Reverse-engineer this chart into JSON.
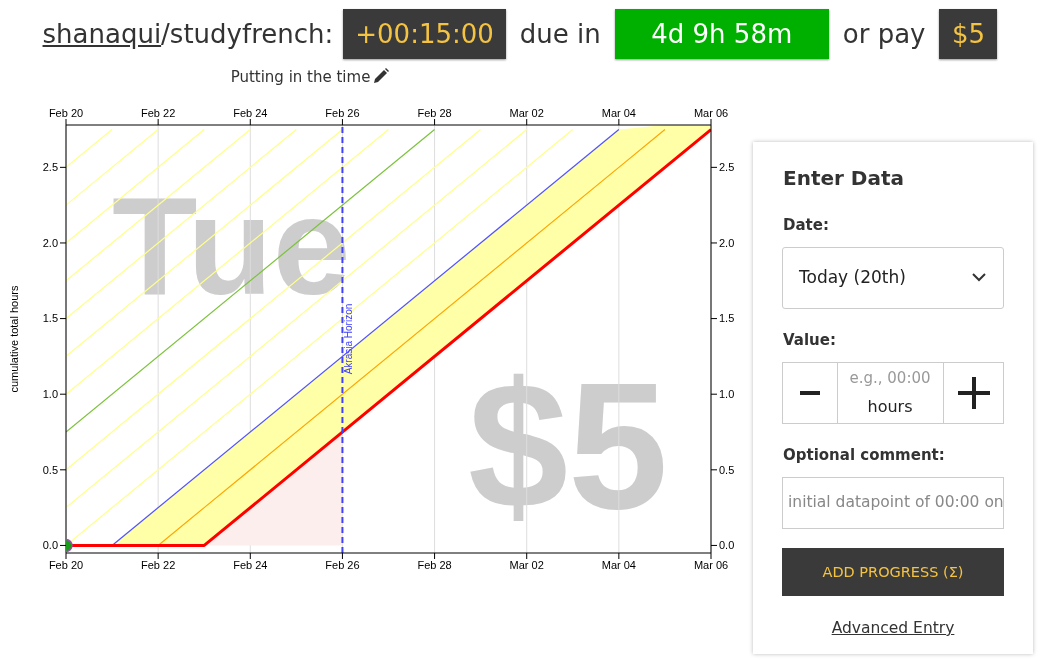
{
  "chart_data": [
    {
      "type": "other",
      "annotations": [
        "shanaqui/studyfrench:",
        "+00:15:00",
        "due in",
        "4d 9h 58m",
        "or pay",
        "$5"
      ]
    },
    {
      "type": "line",
      "title": "Putting in the time",
      "ylabel": "cumulative total hours",
      "annotations": [
        "Tue",
        "$5"
      ],
      "xlim": [
        "--02-20",
        "--03-06"
      ],
      "ylim": [
        -0.05,
        2.78
      ],
      "x2lim": [
        "--02-20",
        "--03-06"
      ],
      "y2lim": [
        -0.05,
        2.78
      ],
      "xticks": [
        {
          "value": "--02-20",
          "label": "Feb 20"
        },
        {
          "value": "--02-22",
          "label": "Feb 22"
        },
        {
          "value": "--02-24",
          "label": "Feb 24"
        },
        {
          "value": "--02-26",
          "label": "Feb 26"
        },
        {
          "value": "--02-28",
          "label": "Feb 28"
        },
        {
          "value": "--03-02",
          "label": "Mar 02"
        },
        {
          "value": "--03-04",
          "label": "Mar 04"
        },
        {
          "value": "--03-06",
          "label": "Mar 06"
        }
      ],
      "x2ticks": [
        {
          "value": "--02-20",
          "label": "Feb 20"
        },
        {
          "value": "--02-22",
          "label": "Feb 22"
        },
        {
          "value": "--02-24",
          "label": "Feb 24"
        },
        {
          "value": "--02-26",
          "label": "Feb 26"
        },
        {
          "value": "--02-28",
          "label": "Feb 28"
        },
        {
          "value": "--03-02",
          "label": "Mar 02"
        },
        {
          "value": "--03-04",
          "label": "Mar 04"
        },
        {
          "value": "--03-06",
          "label": "Mar 06"
        }
      ],
      "yticks": [
        {
          "value": 0,
          "label": "0.0"
        },
        {
          "value": 0.5,
          "label": "0.5"
        },
        {
          "value": 1,
          "label": "1.0"
        },
        {
          "value": 1.5,
          "label": "1.5"
        },
        {
          "value": 2,
          "label": "2.0"
        },
        {
          "value": 2.5,
          "label": "2.5"
        }
      ],
      "y2ticks": [
        {
          "value": 0,
          "label": "0.0"
        },
        {
          "value": 0.5,
          "label": "0.5"
        },
        {
          "value": 1,
          "label": "1.0"
        },
        {
          "value": 1.5,
          "label": "1.5"
        },
        {
          "value": 2,
          "label": "2.0"
        },
        {
          "value": 2.5,
          "label": "2.5"
        }
      ],
      "grid": "x",
      "ref_lines": [
        {
          "axis": "x",
          "value": "--02-26",
          "label": "Akrasia Horizon",
          "color": "#4040ff",
          "line_style": "dashed"
        }
      ],
      "series": [
        {
          "type": "area",
          "color": "#fdeeee",
          "x": [
            "--02-20",
            "--02-23",
            "--02-26"
          ],
          "values": [
            0,
            0,
            0.75
          ]
        },
        {
          "type": "line",
          "color": "#ffff88",
          "x": [
            "--02-20",
            "--03-03"
          ],
          "values": [
            0,
            2.75
          ]
        },
        {
          "type": "line",
          "color": "#ffff88",
          "x": [
            "--02-20",
            "--03-02"
          ],
          "values": [
            0.25,
            2.75
          ]
        },
        {
          "type": "line",
          "color": "#ffff88",
          "x": [
            "--02-20",
            "--03-01"
          ],
          "values": [
            0.5,
            2.75
          ]
        },
        {
          "type": "line",
          "color": "#ffff88",
          "x": [
            "--02-20",
            "--02-27"
          ],
          "values": [
            1,
            2.75
          ]
        },
        {
          "type": "line",
          "color": "#ffff88",
          "x": [
            "--02-20",
            "--02-26"
          ],
          "values": [
            1.25,
            2.75
          ]
        },
        {
          "type": "line",
          "color": "#ffff88",
          "x": [
            "--02-20",
            "--02-25"
          ],
          "values": [
            1.5,
            2.75
          ]
        },
        {
          "type": "line",
          "color": "#ffff88",
          "x": [
            "--02-20",
            "--02-24"
          ],
          "values": [
            1.75,
            2.75
          ]
        },
        {
          "type": "line",
          "color": "#ffff88",
          "x": [
            "--02-20",
            "--02-23"
          ],
          "values": [
            2,
            2.75
          ]
        },
        {
          "type": "line",
          "color": "#ffff88",
          "x": [
            "--02-20",
            "--02-22"
          ],
          "values": [
            2.25,
            2.75
          ]
        },
        {
          "type": "line",
          "color": "#ffff88",
          "x": [
            "--02-20",
            "--02-21"
          ],
          "values": [
            2.5,
            2.75
          ]
        },
        {
          "type": "line",
          "color": "#7cc23a",
          "x": [
            "--02-20",
            "--02-28"
          ],
          "values": [
            0.75,
            2.75
          ]
        },
        {
          "type": "line",
          "color": "#5050ff",
          "x": [
            "--02-21",
            "--03-04"
          ],
          "values": [
            0,
            2.75
          ]
        },
        {
          "type": "line",
          "color": "#ffa500",
          "x": [
            "--02-21",
            "--02-22",
            "--02-23",
            "--03-04",
            "--03-05",
            "--03-06"
          ],
          "values": [
            null,
            0,
            0.25,
            2.5,
            2.75,
            null
          ],
          "lower": [
            0,
            0,
            0,
            2.25,
            2.5,
            2.75
          ],
          "upper": [
            0,
            0.25,
            0.5,
            2.75,
            2.78,
            2.78
          ]
        },
        {
          "type": "line",
          "color": "#ff0000",
          "x": [
            "--02-20",
            "--02-23",
            "--03-06"
          ],
          "values": [
            0,
            0,
            2.75
          ]
        },
        {
          "type": "scatter",
          "color": "#1a9e1a",
          "marker": "circle",
          "x": [
            "--02-20"
          ],
          "values": [
            0
          ]
        }
      ]
    },
    {
      "type": "other",
      "title": "Enter Data",
      "annotations": [
        "Date:",
        "Today (20th)",
        "Value:",
        "e.g., 00:00",
        "hours",
        "Optional comment:",
        "initial datapoint of 00:00 on",
        "ADD PROGRESS (Σ)",
        "Advanced Entry"
      ]
    }
  ]
}
